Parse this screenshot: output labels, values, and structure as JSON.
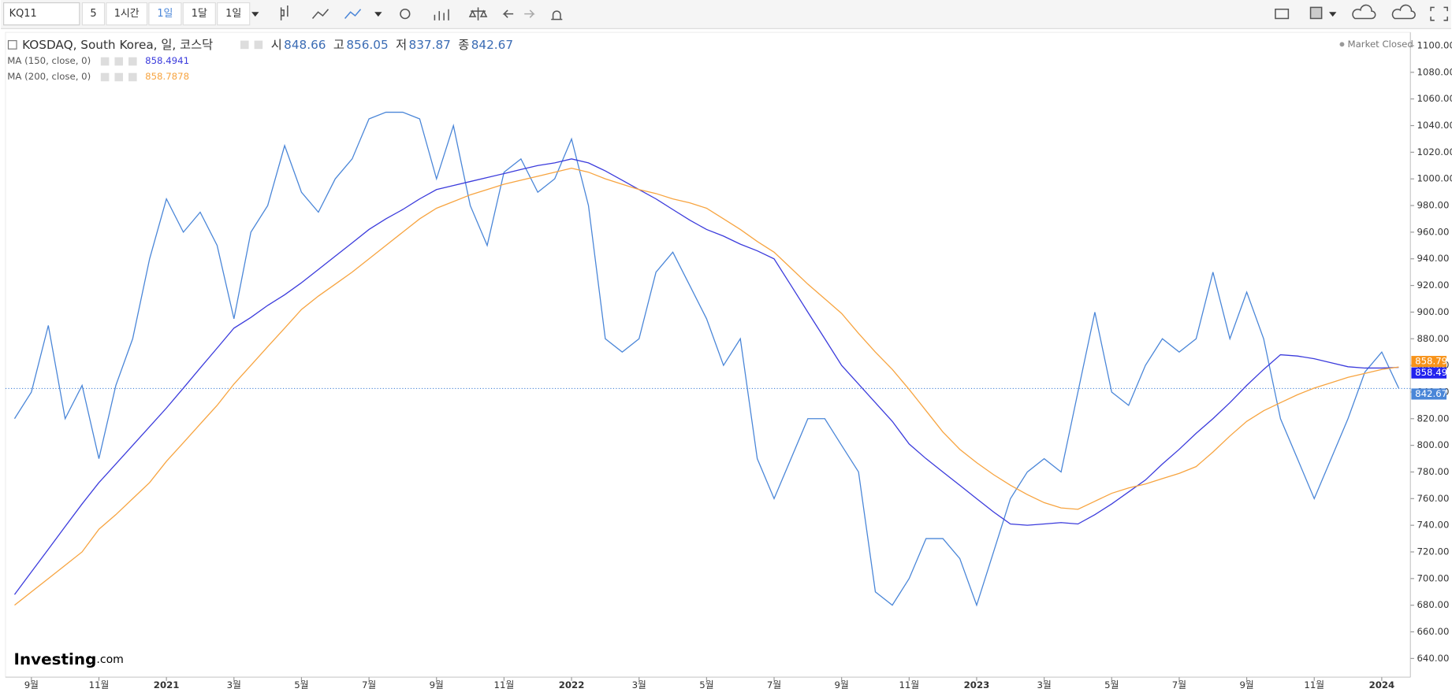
{
  "toolbar": {
    "symbol": "KQ11",
    "buttons": [
      "5",
      "1시간",
      "1일",
      "1달",
      "1일"
    ]
  },
  "chart_data": {
    "type": "line",
    "title": "KOSDAQ, South Korea, 일, 코스닥",
    "ohlc": [
      {
        "name": "시",
        "value": "848.66"
      },
      {
        "name": "고",
        "value": "856.05"
      },
      {
        "name": "저",
        "value": "837.87"
      },
      {
        "name": "종",
        "value": "842.67"
      }
    ],
    "status": "Market Closed",
    "brand": "Investing",
    "brand_suffix": ".com",
    "categories": [
      null,
      "9월",
      null,
      null,
      null,
      "11월",
      null,
      null,
      null,
      "2021",
      null,
      null,
      null,
      "3월",
      null,
      null,
      null,
      "5월",
      null,
      null,
      null,
      "7월",
      null,
      null,
      null,
      "9월",
      null,
      null,
      null,
      "11월",
      null,
      null,
      null,
      "2022",
      null,
      null,
      null,
      "3월",
      null,
      null,
      null,
      "5월",
      null,
      null,
      null,
      "7월",
      null,
      null,
      null,
      "9월",
      null,
      null,
      null,
      "11월",
      null,
      null,
      null,
      "2023",
      null,
      null,
      null,
      "3월",
      null,
      null,
      null,
      "5월",
      null,
      null,
      null,
      "7월",
      null,
      null,
      null,
      "9월",
      null,
      null,
      null,
      "11월",
      null,
      null,
      null,
      "2024",
      null
    ],
    "series": [
      {
        "name": "KOSDAQ",
        "color": "#4a86d8",
        "values": [
          820,
          840,
          890,
          820,
          845,
          790,
          845,
          880,
          940,
          985,
          960,
          975,
          950,
          895,
          960,
          980,
          1025,
          990,
          975,
          1000,
          1015,
          1045,
          1050,
          1050,
          1045,
          1000,
          1040,
          980,
          950,
          1005,
          1015,
          990,
          1000,
          1030,
          980,
          880,
          870,
          880,
          930,
          945,
          920,
          895,
          860,
          880,
          790,
          760,
          790,
          820,
          820,
          800,
          780,
          690,
          680,
          700,
          730,
          730,
          715,
          680,
          720,
          760,
          780,
          790,
          780,
          840,
          900,
          840,
          830,
          860,
          880,
          870,
          880,
          930,
          880,
          915,
          880,
          820,
          790,
          760,
          790,
          820,
          855,
          870,
          843
        ]
      },
      {
        "name": "MA (150, close, 0)",
        "label_value": "858.4941",
        "color": "#3b3bdc",
        "values": [
          688,
          705,
          722,
          739,
          756,
          772,
          786,
          800,
          814,
          828,
          843,
          858,
          873,
          888,
          896,
          905,
          913,
          922,
          932,
          942,
          952,
          962,
          970,
          977,
          985,
          992,
          995,
          998,
          1001,
          1004,
          1007,
          1010,
          1012,
          1015,
          1012,
          1006,
          999,
          992,
          985,
          977,
          969,
          962,
          957,
          951,
          946,
          940,
          920,
          900,
          880,
          860,
          846,
          832,
          818,
          801,
          790,
          780,
          770,
          760,
          750,
          741,
          740,
          741,
          742,
          741,
          748,
          756,
          765,
          774,
          786,
          797,
          809,
          820,
          832,
          845,
          857,
          868,
          867,
          865,
          862,
          859,
          858,
          858,
          858.5
        ]
      },
      {
        "name": "MA (200, close, 0)",
        "label_value": "858.7878",
        "color": "#f7a440",
        "values": [
          680,
          690,
          700,
          710,
          720,
          737,
          748,
          760,
          772,
          788,
          802,
          816,
          830,
          846,
          860,
          874,
          888,
          902,
          912,
          921,
          930,
          940,
          950,
          960,
          970,
          978,
          983,
          988,
          992,
          996,
          999,
          1002,
          1005,
          1008,
          1005,
          1000,
          996,
          992,
          989,
          985,
          982,
          978,
          970,
          962,
          953,
          945,
          933,
          921,
          910,
          899,
          884,
          870,
          857,
          842,
          826,
          810,
          797,
          787,
          778,
          770,
          763,
          757,
          753,
          752,
          758,
          764,
          768,
          771,
          775,
          779,
          784,
          795,
          807,
          818,
          826,
          832,
          838,
          843,
          847,
          851,
          854,
          857,
          858.8
        ]
      }
    ],
    "price_tags": [
      858.79,
      858.49,
      842.67
    ],
    "price_tag_colors": [
      "#f7931a",
      "#2222ee",
      "#4a86d8"
    ],
    "ylim": [
      626,
      1110
    ],
    "yticks": [
      {
        "value": 640,
        "label": "640.00"
      },
      {
        "value": 660,
        "label": "660.00"
      },
      {
        "value": 680,
        "label": "680.00"
      },
      {
        "value": 700,
        "label": "700.00"
      },
      {
        "value": 720,
        "label": "720.00"
      },
      {
        "value": 740,
        "label": "740.00"
      },
      {
        "value": 760,
        "label": "760.00"
      },
      {
        "value": 780,
        "label": "780.00"
      },
      {
        "value": 800,
        "label": "800.00"
      },
      {
        "value": 820,
        "label": "820.00"
      },
      {
        "value": 840,
        "label": "840.00"
      },
      {
        "value": 860,
        "label": "860.00"
      },
      {
        "value": 880,
        "label": "880.00"
      },
      {
        "value": 900,
        "label": "900.00"
      },
      {
        "value": 920,
        "label": "920.00"
      },
      {
        "value": 940,
        "label": "940.00"
      },
      {
        "value": 960,
        "label": "960.00"
      },
      {
        "value": 980,
        "label": "980.00"
      },
      {
        "value": 1000,
        "label": "1000.00"
      },
      {
        "value": 1020,
        "label": "1020.00"
      },
      {
        "value": 1040,
        "label": "1040.00"
      },
      {
        "value": 1060,
        "label": "1060.00"
      },
      {
        "value": 1080,
        "label": "1080.00"
      },
      {
        "value": 1100,
        "label": "1100.00"
      }
    ]
  }
}
